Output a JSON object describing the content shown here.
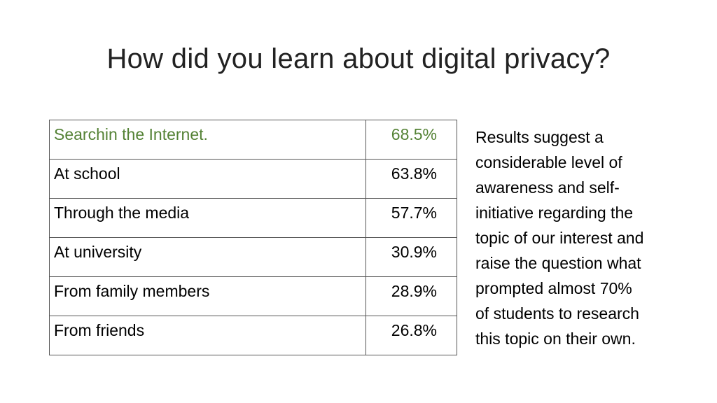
{
  "slide": {
    "title": "How did you learn about digital privacy?"
  },
  "table": {
    "rows": [
      {
        "label": "Searchin the Internet.",
        "value": "68.5%"
      },
      {
        "label": "At school",
        "value": "63.8%"
      },
      {
        "label": "Through the media",
        "value": "57.7%"
      },
      {
        "label": "At university",
        "value": "30.9%"
      },
      {
        "label": "From family members",
        "value": "28.9%"
      },
      {
        "label": "From friends",
        "value": "26.8%"
      }
    ],
    "highlight_color": "#548235"
  },
  "notes": {
    "lines": [
      "Results suggest a",
      "considerable level of",
      "awareness and self-",
      "initiative regarding the",
      "topic of our interest and",
      "raise the question what",
      "prompted almost 70%",
      "of students to research",
      "this topic on their own."
    ]
  }
}
